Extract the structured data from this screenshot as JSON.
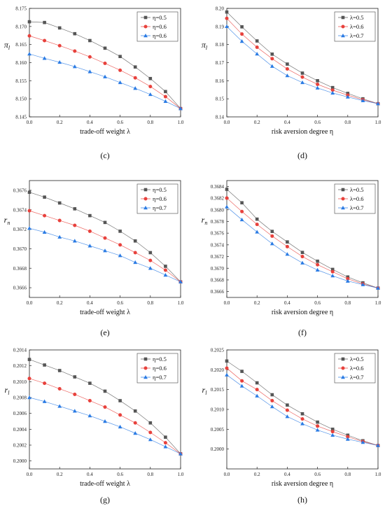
{
  "chart_data": [
    {
      "type": "line",
      "panel_label": "(c)",
      "xlabel": "trade-off weight λ",
      "ylabel": "π_l",
      "xlim": [
        0,
        1
      ],
      "ylim": [
        8.145,
        8.175
      ],
      "x_ticks": [
        "0.0",
        "0.2",
        "0.4",
        "0.6",
        "0.8",
        "1.0"
      ],
      "y_ticks": [
        "8.145",
        "8.150",
        "8.155",
        "8.160",
        "8.165",
        "8.170",
        "8.175"
      ],
      "legend_position": "top-right",
      "grid": false,
      "x": [
        0,
        0.1,
        0.2,
        0.3,
        0.4,
        0.5,
        0.6,
        0.7,
        0.8,
        0.9,
        1.0
      ],
      "series": [
        {
          "name": "η=0.5",
          "marker": "square",
          "color": "#555555",
          "values": [
            8.1713,
            8.1711,
            8.1696,
            8.168,
            8.1661,
            8.164,
            8.1617,
            8.1588,
            8.1556,
            8.152,
            8.1473
          ]
        },
        {
          "name": "η=0.6",
          "marker": "circle",
          "color": "#e8413c",
          "values": [
            8.1674,
            8.1661,
            8.1647,
            8.1632,
            8.1616,
            8.1598,
            8.1579,
            8.1558,
            8.1534,
            8.1506,
            8.1473
          ]
        },
        {
          "name": "η=0.6",
          "marker": "triangle",
          "color": "#2a7be4",
          "values": [
            8.1624,
            8.1612,
            8.1601,
            8.1589,
            8.1575,
            8.1561,
            8.1545,
            8.1529,
            8.1512,
            8.1493,
            8.1473
          ]
        }
      ]
    },
    {
      "type": "line",
      "panel_label": "(d)",
      "xlabel": "risk aversion degree η",
      "ylabel": "π_l",
      "xlim": [
        0,
        1
      ],
      "ylim": [
        8.14,
        8.2
      ],
      "x_ticks": [
        "0.0",
        "0.2",
        "0.4",
        "0.6",
        "0.8",
        "1.0"
      ],
      "y_ticks": [
        "8.14",
        "8.15",
        "8.16",
        "8.17",
        "8.18",
        "8.19",
        "8.20"
      ],
      "legend_position": "top-right",
      "grid": false,
      "x": [
        0,
        0.1,
        0.2,
        0.3,
        0.4,
        0.5,
        0.6,
        0.7,
        0.8,
        0.9,
        1.0
      ],
      "series": [
        {
          "name": "λ=0.5",
          "marker": "square",
          "color": "#555555",
          "values": [
            8.198,
            8.1898,
            8.182,
            8.1747,
            8.1692,
            8.1642,
            8.16,
            8.1562,
            8.153,
            8.15,
            8.1473
          ]
        },
        {
          "name": "λ=0.6",
          "marker": "circle",
          "color": "#e8413c",
          "values": [
            8.1945,
            8.1858,
            8.1785,
            8.1722,
            8.1665,
            8.162,
            8.158,
            8.1548,
            8.152,
            8.1495,
            8.1473
          ]
        },
        {
          "name": "λ=0.7",
          "marker": "triangle",
          "color": "#2a7be4",
          "values": [
            8.19,
            8.1818,
            8.1748,
            8.168,
            8.1628,
            8.159,
            8.156,
            8.1532,
            8.151,
            8.149,
            8.1473
          ]
        }
      ]
    },
    {
      "type": "line",
      "panel_label": "(e)",
      "xlabel": "trade-off weight λ",
      "ylabel": "r_n",
      "xlim": [
        0,
        1
      ],
      "ylim": [
        0.3665,
        0.3677
      ],
      "x_ticks": [
        "0.0",
        "0.2",
        "0.4",
        "0.6",
        "0.8",
        "1.0"
      ],
      "y_ticks": [
        "0.3666",
        "0.3668",
        "0.3670",
        "0.3672",
        "0.3674",
        "0.3676"
      ],
      "legend_position": "top-right",
      "grid": false,
      "x": [
        0,
        0.1,
        0.2,
        0.3,
        0.4,
        0.5,
        0.6,
        0.7,
        0.8,
        0.9,
        1.0
      ],
      "series": [
        {
          "name": "η=0.5",
          "marker": "square",
          "color": "#555555",
          "values": [
            0.36758,
            0.36753,
            0.36747,
            0.36741,
            0.36734,
            0.36727,
            0.36718,
            0.36708,
            0.36696,
            0.36682,
            0.36666
          ]
        },
        {
          "name": "η=0.6",
          "marker": "circle",
          "color": "#e8413c",
          "values": [
            0.36739,
            0.36734,
            0.36729,
            0.36724,
            0.36718,
            0.36711,
            0.36704,
            0.36696,
            0.36688,
            0.36678,
            0.36666
          ]
        },
        {
          "name": "η=0.7",
          "marker": "triangle",
          "color": "#2a7be4",
          "values": [
            0.36721,
            0.36717,
            0.36712,
            0.36708,
            0.36703,
            0.36698,
            0.36693,
            0.36686,
            0.3668,
            0.36673,
            0.36666
          ]
        }
      ]
    },
    {
      "type": "line",
      "panel_label": "(f)",
      "xlabel": "risk aversion degree η",
      "ylabel": "r_n",
      "xlim": [
        0,
        1
      ],
      "ylim": [
        0.3665,
        0.3685
      ],
      "x_ticks": [
        "0.0",
        "0.2",
        "0.4",
        "0.6",
        "0.8",
        "1.0"
      ],
      "y_ticks": [
        "0.3666",
        "0.3668",
        "0.3670",
        "0.3672",
        "0.3674",
        "0.3676",
        "0.3678",
        "0.3680",
        "0.3682",
        "0.3684"
      ],
      "legend_position": "top-right",
      "grid": false,
      "x": [
        0,
        0.1,
        0.2,
        0.3,
        0.4,
        0.5,
        0.6,
        0.7,
        0.8,
        0.9,
        1.0
      ],
      "series": [
        {
          "name": "λ=0.5",
          "marker": "square",
          "color": "#555555",
          "values": [
            0.36835,
            0.36812,
            0.36784,
            0.36763,
            0.36745,
            0.36727,
            0.36712,
            0.36698,
            0.36685,
            0.36675,
            0.36666
          ]
        },
        {
          "name": "λ=0.6",
          "marker": "circle",
          "color": "#e8413c",
          "values": [
            0.3682,
            0.36797,
            0.36775,
            0.36755,
            0.36737,
            0.3672,
            0.36706,
            0.36694,
            0.36682,
            0.36673,
            0.36666
          ]
        },
        {
          "name": "λ=0.7",
          "marker": "triangle",
          "color": "#2a7be4",
          "values": [
            0.36805,
            0.36783,
            0.36762,
            0.36742,
            0.36724,
            0.36709,
            0.36697,
            0.36687,
            0.36678,
            0.36672,
            0.36666
          ]
        }
      ]
    },
    {
      "type": "line",
      "panel_label": "(g)",
      "xlabel": "trade-off weight λ",
      "ylabel": "r_l",
      "xlim": [
        0,
        1
      ],
      "ylim": [
        0.1999,
        0.2014
      ],
      "x_ticks": [
        "0.0",
        "0.2",
        "0.4",
        "0.6",
        "0.8",
        "1.0"
      ],
      "y_ticks": [
        "0.2000",
        "0.2002",
        "0.2004",
        "0.2006",
        "0.2008",
        "0.2010",
        "0.2012",
        "0.2014"
      ],
      "legend_position": "top-right",
      "grid": false,
      "x": [
        0,
        0.1,
        0.2,
        0.3,
        0.4,
        0.5,
        0.6,
        0.7,
        0.8,
        0.9,
        1.0
      ],
      "series": [
        {
          "name": "η=0.5",
          "marker": "square",
          "color": "#555555",
          "values": [
            0.20128,
            0.20121,
            0.20114,
            0.20106,
            0.20098,
            0.20088,
            0.20076,
            0.20063,
            0.20048,
            0.2003,
            0.20009
          ]
        },
        {
          "name": "η=0.6",
          "marker": "circle",
          "color": "#e8413c",
          "values": [
            0.20104,
            0.20098,
            0.20091,
            0.20084,
            0.20076,
            0.20068,
            0.20058,
            0.20048,
            0.20036,
            0.20023,
            0.20009
          ]
        },
        {
          "name": "η=0.7",
          "marker": "triangle",
          "color": "#2a7be4",
          "values": [
            0.2008,
            0.20075,
            0.20069,
            0.20063,
            0.20057,
            0.2005,
            0.20043,
            0.20035,
            0.20027,
            0.20018,
            0.20009
          ]
        }
      ]
    },
    {
      "type": "line",
      "panel_label": "(h)",
      "xlabel": "risk aversion degree η",
      "ylabel": "r_l",
      "xlim": [
        0,
        1
      ],
      "ylim": [
        0.1995,
        0.2025
      ],
      "x_ticks": [
        "0.0",
        "0.2",
        "0.4",
        "0.6",
        "0.8",
        "1.0"
      ],
      "y_ticks": [
        "0.2000",
        "0.2005",
        "0.2010",
        "0.2015",
        "0.2020",
        "0.2025"
      ],
      "legend_position": "top-right",
      "grid": false,
      "x": [
        0,
        0.1,
        0.2,
        0.3,
        0.4,
        0.5,
        0.6,
        0.7,
        0.8,
        0.9,
        1.0
      ],
      "series": [
        {
          "name": "λ=0.5",
          "marker": "square",
          "color": "#555555",
          "values": [
            0.20222,
            0.20196,
            0.20167,
            0.20137,
            0.20111,
            0.20089,
            0.20068,
            0.2005,
            0.20035,
            0.20021,
            0.20009
          ]
        },
        {
          "name": "λ=0.6",
          "marker": "circle",
          "color": "#e8413c",
          "values": [
            0.20204,
            0.20172,
            0.2015,
            0.20122,
            0.20098,
            0.20076,
            0.20058,
            0.20044,
            0.20031,
            0.20019,
            0.20009
          ]
        },
        {
          "name": "λ=0.7",
          "marker": "triangle",
          "color": "#2a7be4",
          "values": [
            0.20187,
            0.20159,
            0.20134,
            0.20107,
            0.20082,
            0.20064,
            0.20048,
            0.20035,
            0.20025,
            0.20017,
            0.20009
          ]
        }
      ]
    }
  ]
}
